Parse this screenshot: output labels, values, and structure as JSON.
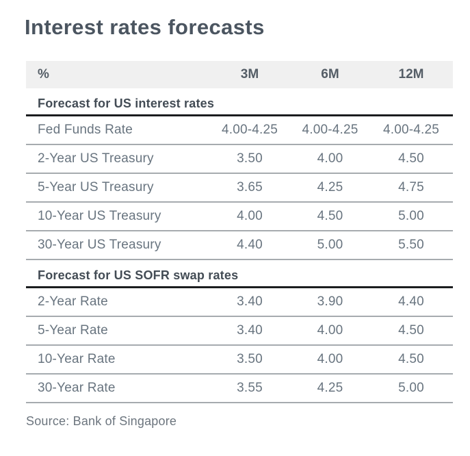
{
  "chart_data": {
    "type": "table",
    "title": "Interest rates forecasts",
    "columns": [
      "%",
      "3M",
      "6M",
      "12M"
    ],
    "sections": [
      {
        "header": "Forecast for US interest rates",
        "rows": [
          {
            "label": "Fed Funds Rate",
            "values": [
              "4.00-4.25",
              "4.00-4.25",
              "4.00-4.25"
            ]
          },
          {
            "label": "2-Year US Treasury",
            "values": [
              "3.50",
              "4.00",
              "4.50"
            ]
          },
          {
            "label": "5-Year US Treasury",
            "values": [
              "3.65",
              "4.25",
              "4.75"
            ]
          },
          {
            "label": "10-Year US Treasury",
            "values": [
              "4.00",
              "4.50",
              "5.00"
            ]
          },
          {
            "label": "30-Year US Treasury",
            "values": [
              "4.40",
              "5.00",
              "5.50"
            ]
          }
        ]
      },
      {
        "header": "Forecast for US SOFR swap rates",
        "rows": [
          {
            "label": "2-Year Rate",
            "values": [
              "3.40",
              "3.90",
              "4.40"
            ]
          },
          {
            "label": "5-Year Rate",
            "values": [
              "3.40",
              "4.00",
              "4.50"
            ]
          },
          {
            "label": "10-Year Rate",
            "values": [
              "3.50",
              "4.00",
              "4.50"
            ]
          },
          {
            "label": "30-Year Rate",
            "values": [
              "3.55",
              "4.25",
              "5.00"
            ]
          }
        ]
      }
    ],
    "source": "Source: Bank of Singapore",
    "layout": {
      "grid": false,
      "value_alignment": "center",
      "section_rule": "thick-black",
      "row_rule": "thin-gray"
    }
  },
  "colors": {
    "title_text": "#4b5560",
    "section_header_text": "#434c55",
    "body_text": "#68747f",
    "column_header_text": "#545d66",
    "header_band_bg": "#f0f0f0",
    "section_rule": "#1b1d1f",
    "row_rule": "#a6abaf",
    "source_text": "#6c757e",
    "background": "#ffffff"
  }
}
